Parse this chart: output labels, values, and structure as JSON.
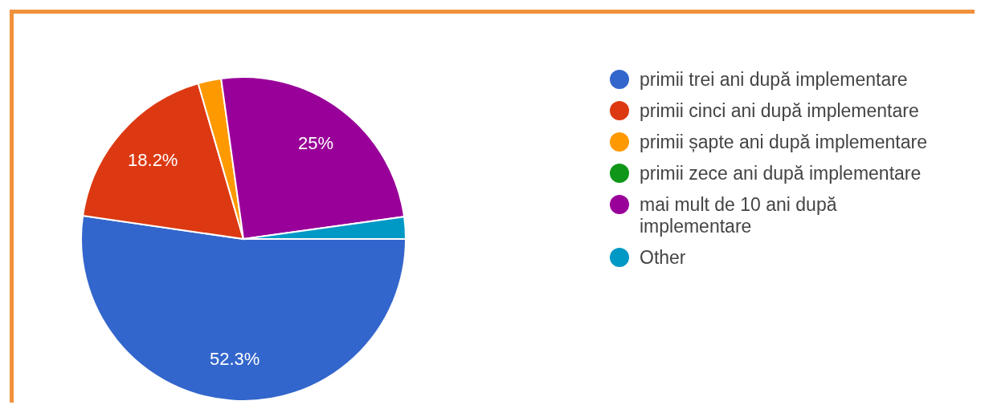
{
  "chart_data": {
    "type": "pie",
    "categories": [
      "primii trei ani după implementare",
      "primii cinci ani după implementare",
      "primii șapte ani după implementare",
      "primii zece ani după implementare",
      "mai mult de 10 ani după implementare",
      "Other"
    ],
    "values": [
      52.3,
      18.2,
      2.3,
      0,
      25,
      2.2
    ],
    "colors": [
      "#3366cc",
      "#dc3912",
      "#ff9900",
      "#109618",
      "#990099",
      "#0099c6"
    ],
    "value_labels": [
      "52.3%",
      "18.2%",
      null,
      null,
      "25%",
      null
    ],
    "legend": "right"
  }
}
